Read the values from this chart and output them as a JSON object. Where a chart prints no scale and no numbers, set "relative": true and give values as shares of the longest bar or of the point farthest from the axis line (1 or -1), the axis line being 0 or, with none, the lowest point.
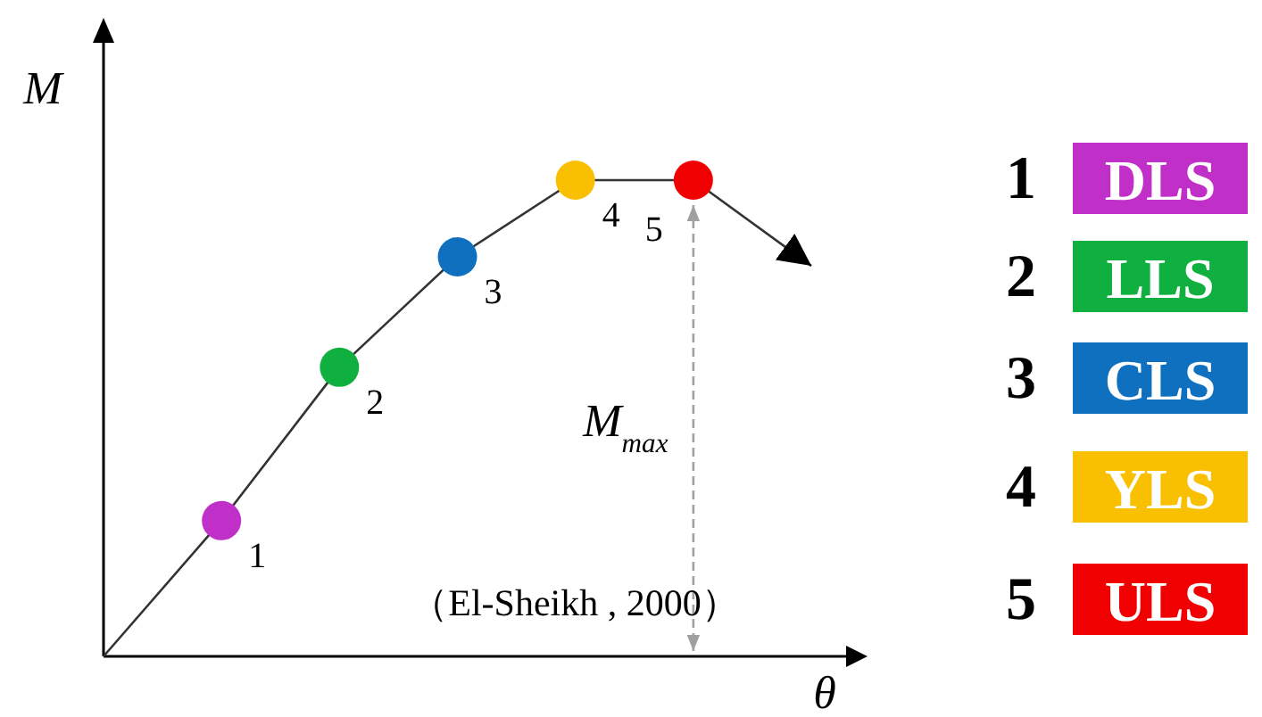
{
  "chart_data": {
    "type": "line",
    "relative": true,
    "xlabel": "θ",
    "ylabel": "M",
    "categories": [
      null,
      null,
      null,
      null,
      null,
      null,
      null
    ],
    "series": [
      {
        "color": "#333333",
        "marker": "circle",
        "values": [
          0,
          0.285,
          0.607,
          0.839,
          1,
          1,
          0.82
        ],
        "colors": [
          null,
          "#c030c8",
          "#10b040",
          "#1070c0",
          "#f8c000",
          "#f00000",
          null
        ]
      }
    ],
    "annotations": [
      "1",
      "2",
      "3",
      "4",
      "5",
      "M$_{max}$",
      "（El-Sheikh , 2000）",
      "DLS",
      "LLS",
      "CLS",
      "YLS",
      "ULS"
    ]
  }
}
